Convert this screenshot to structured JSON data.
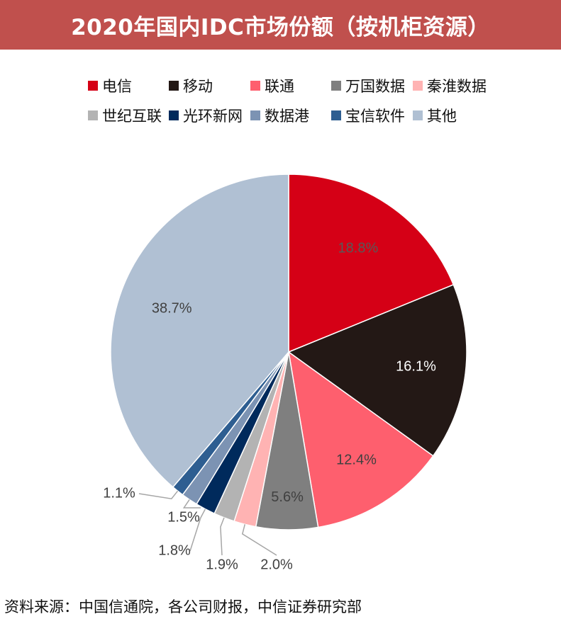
{
  "header": {
    "title": "2020年国内IDC市场份额（按机柜资源）"
  },
  "chart_data": {
    "type": "pie",
    "title": "2020年国内IDC市场份额（按机柜资源）",
    "legend_position": "top",
    "slices": [
      {
        "name": "电信",
        "value": 18.8,
        "label": "18.8%",
        "color": "#d50016"
      },
      {
        "name": "移动",
        "value": 16.1,
        "label": "16.1%",
        "color": "#231815"
      },
      {
        "name": "联通",
        "value": 12.4,
        "label": "12.4%",
        "color": "#fe5f6e"
      },
      {
        "name": "万国数据",
        "value": 5.6,
        "label": "5.6%",
        "color": "#7f7f7f"
      },
      {
        "name": "秦淮数据",
        "value": 2.0,
        "label": "2.0%",
        "color": "#ffb3b3"
      },
      {
        "name": "世纪互联",
        "value": 1.9,
        "label": "1.9%",
        "color": "#b3b3b3"
      },
      {
        "name": "光环新网",
        "value": 1.8,
        "label": "1.8%",
        "color": "#002a5c"
      },
      {
        "name": "数据港",
        "value": 1.5,
        "label": "1.5%",
        "color": "#7c93b3"
      },
      {
        "name": "宝信软件",
        "value": 1.1,
        "label": "1.1%",
        "color": "#2e5e91"
      },
      {
        "name": "其他",
        "value": 38.7,
        "label": "38.7%",
        "color": "#b0c0d3"
      }
    ]
  },
  "footer": {
    "source": "资料来源：中国信通院，各公司财报，中信证券研究部"
  }
}
